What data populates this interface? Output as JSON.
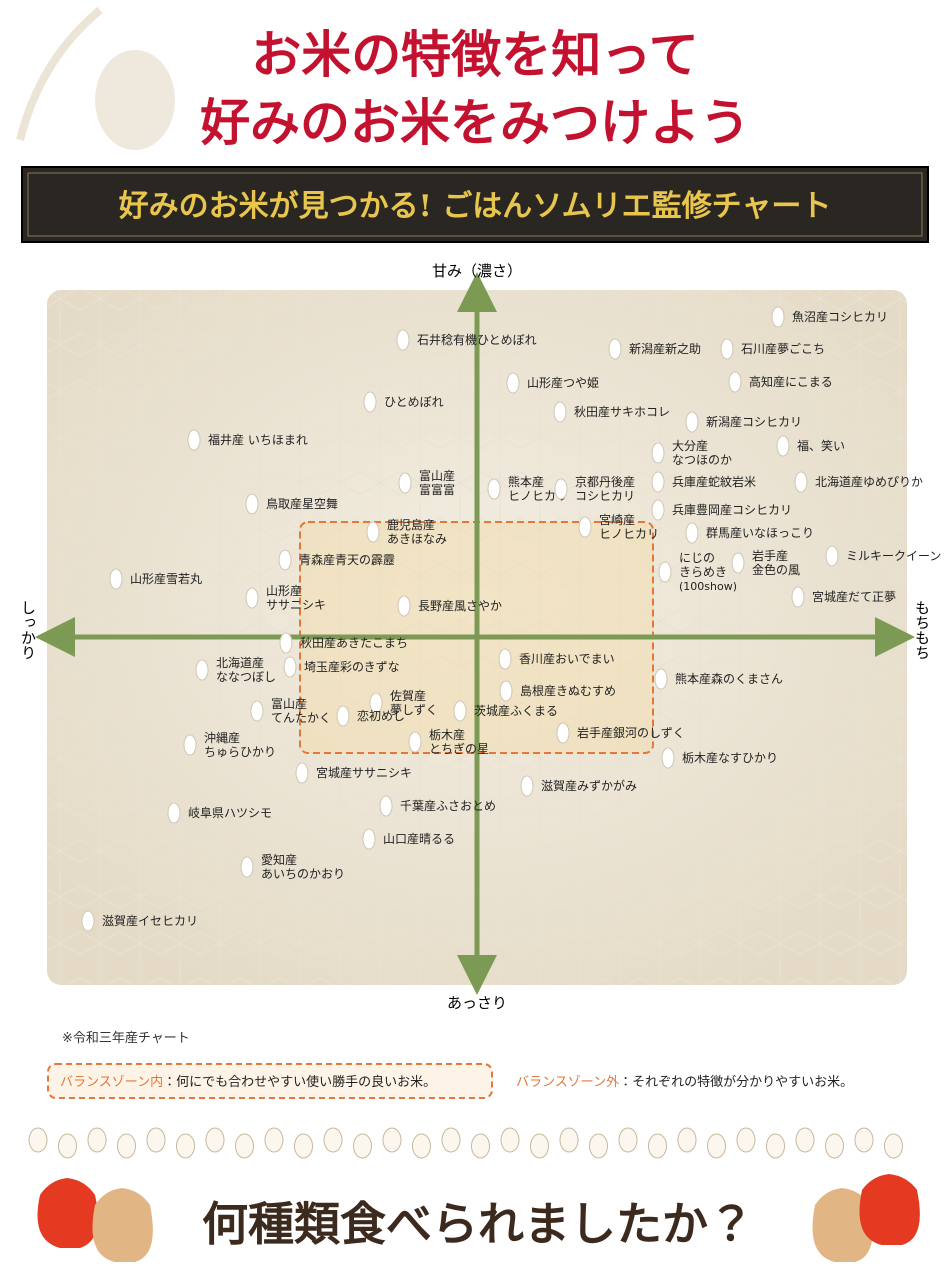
{
  "header": {
    "title_lines": [
      "お米の特徴を知って",
      "好みのお米をみつけよう"
    ],
    "banner": "好みのお米が見つかる! ごはんソムリエ監修チャート"
  },
  "axes": {
    "top": "甘み（濃さ）",
    "bottom": "あっさり",
    "left": "しっかり",
    "right": "もちもち"
  },
  "varieties": [
    {
      "lines": [
        "魚沼産コシヒカリ"
      ]
    },
    {
      "lines": [
        "石井稔有機ひとめぼれ"
      ]
    },
    {
      "lines": [
        "新潟産新之助"
      ]
    },
    {
      "lines": [
        "石川産夢ごこち"
      ]
    },
    {
      "lines": [
        "山形産つや姫"
      ]
    },
    {
      "lines": [
        "高知産にこまる"
      ]
    },
    {
      "lines": [
        "ひとめぼれ"
      ]
    },
    {
      "lines": [
        "秋田産サキホコレ"
      ]
    },
    {
      "lines": [
        "新潟産コシヒカリ"
      ]
    },
    {
      "lines": [
        "福井産 いちほまれ"
      ]
    },
    {
      "lines": [
        "福、笑い"
      ]
    },
    {
      "lines": [
        "大分産",
        "なつほのか"
      ]
    },
    {
      "lines": [
        "富山産",
        "富富富"
      ]
    },
    {
      "lines": [
        "熊本産",
        "ヒノヒカリ"
      ]
    },
    {
      "lines": [
        "京都丹後産",
        "コシヒカリ"
      ]
    },
    {
      "lines": [
        "兵庫産蛇紋岩米"
      ]
    },
    {
      "lines": [
        "北海道産ゆめぴりか"
      ]
    },
    {
      "lines": [
        "鳥取産星空舞"
      ]
    },
    {
      "lines": [
        "宮崎産",
        "ヒノヒカリ"
      ]
    },
    {
      "lines": [
        "兵庫豊岡産コシヒカリ"
      ]
    },
    {
      "lines": [
        "鹿児島産",
        "あきほなみ"
      ]
    },
    {
      "lines": [
        "群馬産いなほっこり"
      ]
    },
    {
      "lines": [
        "青森産青天の霹靂"
      ]
    },
    {
      "lines": [
        "にじの",
        "きらめき",
        "(100show)"
      ]
    },
    {
      "lines": [
        "岩手産",
        "金色の風"
      ]
    },
    {
      "lines": [
        "ミルキークイーン"
      ]
    },
    {
      "lines": [
        "山形産雪若丸"
      ]
    },
    {
      "lines": [
        "山形産",
        "ササニシキ"
      ]
    },
    {
      "lines": [
        "長野産風さやか"
      ]
    },
    {
      "lines": [
        "宮城産だて正夢"
      ]
    },
    {
      "lines": [
        "秋田産あきたこまち"
      ]
    },
    {
      "lines": [
        "北海道産",
        "ななつぼし"
      ]
    },
    {
      "lines": [
        "埼玉産彩のきずな"
      ]
    },
    {
      "lines": [
        "香川産おいでまい"
      ]
    },
    {
      "lines": [
        "熊本産森のくまさん"
      ]
    },
    {
      "lines": [
        "島根産きぬむすめ"
      ]
    },
    {
      "lines": [
        "佐賀産",
        "夢しずく"
      ]
    },
    {
      "lines": [
        "富山産",
        "てんたかく"
      ]
    },
    {
      "lines": [
        "恋初めし"
      ]
    },
    {
      "lines": [
        "茨城産ふくまる"
      ]
    },
    {
      "lines": [
        "沖縄産",
        "ちゅらひかり"
      ]
    },
    {
      "lines": [
        "栃木産",
        "とちぎの星"
      ]
    },
    {
      "lines": [
        "岩手産銀河のしずく"
      ]
    },
    {
      "lines": [
        "栃木産なすひかり"
      ]
    },
    {
      "lines": [
        "宮城産ササニシキ"
      ]
    },
    {
      "lines": [
        "滋賀産みずかがみ"
      ]
    },
    {
      "lines": [
        "千葉産ふさおとめ"
      ]
    },
    {
      "lines": [
        "岐阜県ハツシモ"
      ]
    },
    {
      "lines": [
        "山口産晴るる"
      ]
    },
    {
      "lines": [
        "愛知産",
        "あいちのかおり"
      ]
    },
    {
      "lines": [
        "滋賀産イセヒカリ"
      ]
    }
  ],
  "note": "※令和三年産チャート",
  "legend": {
    "inside": {
      "name": "バランスゾーン内",
      "text": "：何にでも合わせやすい使い勝手の良いお米。"
    },
    "outside": {
      "name": "バランスゾーン外",
      "text": "：それぞれの特徴が分かりやすいお米。"
    }
  },
  "footer": "何種類食べられましたか？"
}
